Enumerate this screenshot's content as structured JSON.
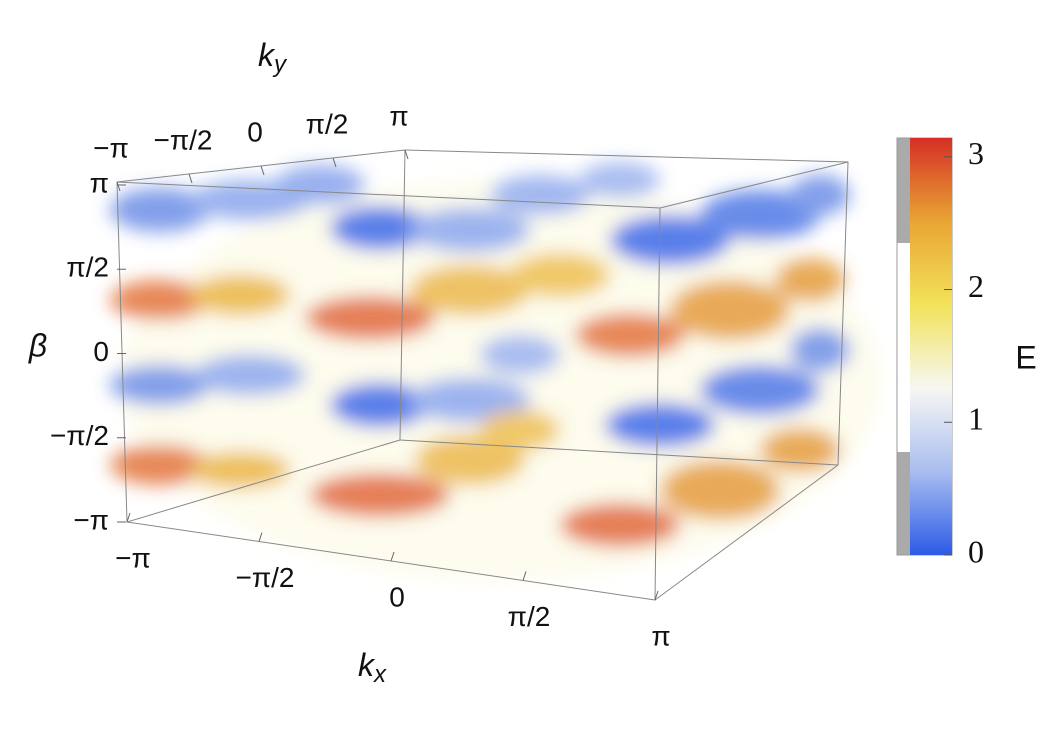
{
  "chart_data": {
    "type": "volume",
    "x_label": {
      "base": "k",
      "sub": "x"
    },
    "y_label": {
      "base": "k",
      "sub": "y"
    },
    "z_label": "β",
    "colorbar_label": "E",
    "xlim": [
      -3.14159,
      3.14159
    ],
    "xticks": [
      {
        "value": -3.14159,
        "label": "−π"
      },
      {
        "value": -1.5708,
        "label": "−π/2"
      },
      0,
      {
        "value": 1.5708,
        "label": "π/2"
      },
      {
        "value": 3.14159,
        "label": "π"
      }
    ],
    "ylim": [
      -3.14159,
      3.14159
    ],
    "yticks": [
      {
        "value": -3.14159,
        "label": "−π"
      },
      {
        "value": -1.5708,
        "label": "−π/2"
      },
      0,
      {
        "value": 1.5708,
        "label": "π/2"
      },
      {
        "value": 3.14159,
        "label": "π"
      }
    ],
    "zlim": [
      -3.14159,
      3.14159
    ],
    "zticks": [
      {
        "value": -3.14159,
        "label": "−π"
      },
      {
        "value": -1.5708,
        "label": "−π/2"
      },
      0,
      {
        "value": 1.5708,
        "label": "π/2"
      },
      {
        "value": 3.14159,
        "label": "π"
      }
    ],
    "clim": [
      0,
      3.14159
    ],
    "cticks": [
      0,
      1,
      2,
      3
    ],
    "colormap": [
      "#2b5be6",
      "#a9bdf0",
      "#f7f7f2",
      "#f2e25a",
      "#e9a534",
      "#d52f25"
    ]
  }
}
